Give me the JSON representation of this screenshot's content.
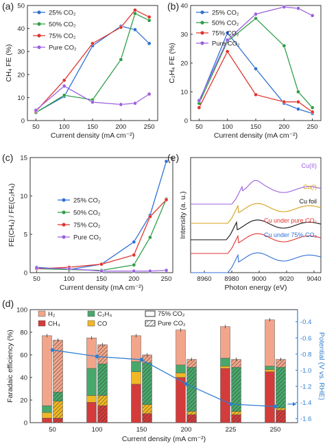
{
  "chart_data": [
    {
      "panel": "(a)",
      "type": "line",
      "xlabel": "Current density (mA cm⁻²)",
      "ylabel": "CH₄ FE (%)",
      "xlim": [
        35,
        265
      ],
      "ylim": [
        0,
        50
      ],
      "xticks": [
        50,
        100,
        150,
        200,
        250
      ],
      "yticks": [
        0,
        10,
        20,
        30,
        40,
        50
      ],
      "legend": "top-left",
      "x": [
        50,
        100,
        150,
        200,
        225,
        250
      ],
      "series": [
        {
          "name": "25% CO₂",
          "color": "#2f6fd6",
          "values": [
            3.5,
            10.5,
            32.5,
            41,
            39.5,
            33.5
          ]
        },
        {
          "name": "50% CO₂",
          "color": "#2e9e48",
          "values": [
            3.5,
            11,
            9,
            26.5,
            46.5,
            43.5
          ]
        },
        {
          "name": "75% CO₂",
          "color": "#e0352e",
          "values": [
            4,
            17.5,
            33.5,
            40.5,
            48,
            45
          ]
        },
        {
          "name": "Pure CO₂",
          "color": "#9b5fe0",
          "values": [
            4.5,
            15,
            8,
            7,
            7.5,
            11.5
          ]
        }
      ]
    },
    {
      "panel": "(b)",
      "type": "line",
      "xlabel": "Current density (mA cm⁻²)",
      "ylabel": "C₂H₄ FE (%)",
      "xlim": [
        35,
        265
      ],
      "ylim": [
        0,
        40
      ],
      "xticks": [
        50,
        100,
        150,
        200,
        250
      ],
      "yticks": [
        0,
        10,
        20,
        30,
        40
      ],
      "legend": "top-left",
      "x": [
        50,
        100,
        150,
        200,
        225,
        250
      ],
      "series": [
        {
          "name": "25% CO₂",
          "color": "#2f6fd6",
          "values": [
            6.5,
            30.5,
            18,
            6,
            4,
            2.5
          ]
        },
        {
          "name": "50% CO₂",
          "color": "#2e9e48",
          "values": [
            6,
            27.5,
            35.5,
            26,
            10,
            4.5
          ]
        },
        {
          "name": "75% CO₂",
          "color": "#e0352e",
          "values": [
            4.5,
            24,
            9,
            6.5,
            6.5,
            3
          ]
        },
        {
          "name": "Pure CO₂",
          "color": "#9b5fe0",
          "values": [
            7,
            28,
            37,
            39.5,
            39,
            36.5
          ]
        }
      ]
    },
    {
      "panel": "(c)",
      "type": "line",
      "xlabel": "Current density (mA cm⁻²)",
      "ylabel": "FE(CH₄) / FE(C₂H₄)",
      "xlim": [
        40,
        260
      ],
      "ylim": [
        0,
        15
      ],
      "xticks": [
        50,
        100,
        150,
        200,
        250
      ],
      "yticks": [
        0,
        5,
        10,
        15
      ],
      "legend": "center-left",
      "x": [
        50,
        100,
        150,
        200,
        225,
        250
      ],
      "series": [
        {
          "name": "25% CO₂",
          "color": "#2f6fd6",
          "values": [
            0.7,
            0.4,
            1.1,
            4.0,
            7.5,
            14.5
          ]
        },
        {
          "name": "50% CO₂",
          "color": "#2e9e48",
          "values": [
            0.5,
            0.4,
            0.3,
            1.0,
            4.6,
            9.6
          ]
        },
        {
          "name": "75% CO₂",
          "color": "#e0352e",
          "values": [
            0.5,
            0.7,
            1.1,
            2.3,
            7.3,
            9.5
          ]
        },
        {
          "name": "Pure CO₂",
          "color": "#9b5fe0",
          "values": [
            0.6,
            0.5,
            0.2,
            0.2,
            0.2,
            0.3
          ]
        }
      ]
    },
    {
      "panel": "(e)",
      "type": "line",
      "xlabel": "Photon energy (eV)",
      "ylabel": "Intensity (a. u.)",
      "xlim": [
        8950,
        9045
      ],
      "xticks": [
        8960,
        8980,
        9000,
        9020,
        9040
      ],
      "curves": [
        {
          "label": "Cu(II)",
          "color": "#9b5fe0"
        },
        {
          "label": "Cu(I)",
          "color": "#d4a017"
        },
        {
          "label": "Cu foil",
          "color": "#111111"
        },
        {
          "label": "Cu under pure CO₂",
          "color": "#e0352e"
        },
        {
          "label": "Cu under 75% CO₂",
          "color": "#2f6fd6"
        }
      ]
    },
    {
      "panel": "(d)",
      "type": "bar",
      "xlabel": "Current density (mA cm⁻²)",
      "ylabel": "Faradaic efficiency (%)",
      "y2label": "Potential (V vs. RHE)",
      "ylim": [
        0,
        100
      ],
      "y2lim": [
        -1.65,
        -0.25
      ],
      "yticks": [
        0,
        20,
        40,
        60,
        80,
        100
      ],
      "y2ticks": [
        -0.4,
        -0.6,
        -0.8,
        -1.0,
        -1.2,
        -1.4,
        -1.6
      ],
      "categories": [
        "50",
        "100",
        "150",
        "200",
        "225",
        "250"
      ],
      "products": [
        {
          "name": "H₂",
          "color": "#f2a58a"
        },
        {
          "name": "C₂H₄",
          "color": "#48a86b"
        },
        {
          "name": "CH₄",
          "color": "#d43b3b"
        },
        {
          "name": "CO",
          "color": "#f0b824"
        }
      ],
      "conditions": [
        {
          "name": "75% CO₂",
          "pattern": "solid"
        },
        {
          "name": "Pure CO₂",
          "pattern": "hatched"
        }
      ],
      "bars_75": [
        {
          "CH4": 4,
          "CO": 5,
          "C2H4": 6,
          "H2": 62,
          "total": 77
        },
        {
          "CH4": 18,
          "CO": 6,
          "C2H4": 24,
          "H2": 27,
          "total": 75
        },
        {
          "CH4": 34,
          "CO": 11,
          "C2H4": 9,
          "H2": 23,
          "total": 77
        },
        {
          "CH4": 40,
          "CO": 4,
          "C2H4": 7,
          "H2": 31,
          "total": 82
        },
        {
          "CH4": 48,
          "CO": 2,
          "C2H4": 7,
          "H2": 28,
          "total": 85
        },
        {
          "CH4": 45,
          "CO": 2,
          "C2H4": 3,
          "H2": 41,
          "total": 91
        }
      ],
      "bars_pure": [
        {
          "CH4": 4,
          "CO": 15,
          "C2H4": 8,
          "H2": 46,
          "total": 73
        },
        {
          "CH4": 15,
          "CO": 9,
          "C2H4": 28,
          "H2": 17,
          "total": 69
        },
        {
          "CH4": 8,
          "CO": 8,
          "C2H4": 37,
          "H2": 7,
          "total": 60
        },
        {
          "CH4": 7,
          "CO": 3,
          "C2H4": 39,
          "H2": 7,
          "total": 56
        },
        {
          "CH4": 7,
          "CO": 3,
          "C2H4": 39,
          "H2": 7,
          "total": 56
        },
        {
          "CH4": 11,
          "CO": 2,
          "C2H4": 36,
          "H2": 7,
          "total": 56
        }
      ],
      "potential": [
        -0.75,
        -0.83,
        -0.87,
        -1.17,
        -1.42,
        -1.45
      ]
    }
  ]
}
